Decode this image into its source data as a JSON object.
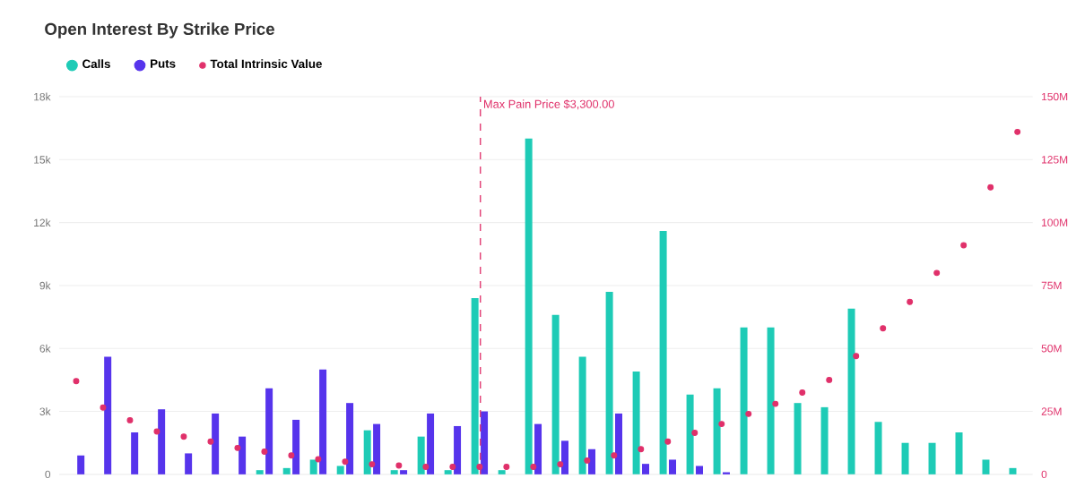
{
  "chart_data": {
    "type": "bar",
    "title": "Open Interest By Strike Price",
    "categories": [
      null,
      null,
      null,
      null,
      null,
      null,
      null,
      null,
      null,
      null,
      null,
      null,
      null,
      null,
      null,
      null,
      null,
      null,
      null,
      null,
      null,
      null,
      null,
      null,
      null,
      null,
      null,
      null,
      null,
      null,
      null,
      null,
      null,
      null,
      null,
      null
    ],
    "series": [
      {
        "name": "Calls",
        "color": "#1ecbb6",
        "values": [
          0,
          0,
          0,
          0,
          0,
          0,
          0,
          200,
          300,
          700,
          400,
          2100,
          200,
          1800,
          200,
          8400,
          200,
          16000,
          7600,
          5600,
          8700,
          4900,
          11600,
          3800,
          4100,
          7000,
          7000,
          3400,
          3200,
          7900,
          2500,
          1500,
          1500,
          2000,
          700,
          300
        ]
      },
      {
        "name": "Puts",
        "color": "#5634ec",
        "values": [
          900,
          5600,
          2000,
          3100,
          1000,
          2900,
          1800,
          4100,
          2600,
          5000,
          3400,
          2400,
          200,
          2900,
          2300,
          3000,
          0,
          2400,
          1600,
          1200,
          2900,
          500,
          700,
          400,
          100,
          0,
          0,
          0,
          0,
          0,
          0,
          0,
          0,
          0,
          0,
          0
        ]
      },
      {
        "name": "Total Intrinsic Value",
        "color": "#e0306a",
        "type": "scatter",
        "axis": "y2",
        "values": [
          37000000,
          26500000,
          21500000,
          17000000,
          15000000,
          13000000,
          10500000,
          9000000,
          7500000,
          6000000,
          5000000,
          4000000,
          3500000,
          3000000,
          3000000,
          3000000,
          3000000,
          3000000,
          4000000,
          5500000,
          7500000,
          10000000,
          13000000,
          16500000,
          20000000,
          24000000,
          28000000,
          32500000,
          37500000,
          47000000,
          58000000,
          68500000,
          80000000,
          91000000,
          114000000,
          136000000
        ]
      }
    ],
    "ylim": [
      0,
      18000
    ],
    "yticks": [
      {
        "value": 0,
        "label": "0"
      },
      {
        "value": 3000,
        "label": "3k"
      },
      {
        "value": 6000,
        "label": "6k"
      },
      {
        "value": 9000,
        "label": "9k"
      },
      {
        "value": 12000,
        "label": "12k"
      },
      {
        "value": 15000,
        "label": "15k"
      },
      {
        "value": 18000,
        "label": "18k"
      }
    ],
    "y2lim": [
      0,
      150000000
    ],
    "y2ticks": [
      {
        "value": 0,
        "label": "0"
      },
      {
        "value": 25000000,
        "label": "25M"
      },
      {
        "value": 50000000,
        "label": "50M"
      },
      {
        "value": 75000000,
        "label": "75M"
      },
      {
        "value": 100000000,
        "label": "100M"
      },
      {
        "value": 125000000,
        "label": "125M"
      },
      {
        "value": 150000000,
        "label": "150M"
      }
    ],
    "annotations": [
      "Max Pain Price $3,300.00"
    ],
    "grid": "y",
    "legend": "top left"
  }
}
